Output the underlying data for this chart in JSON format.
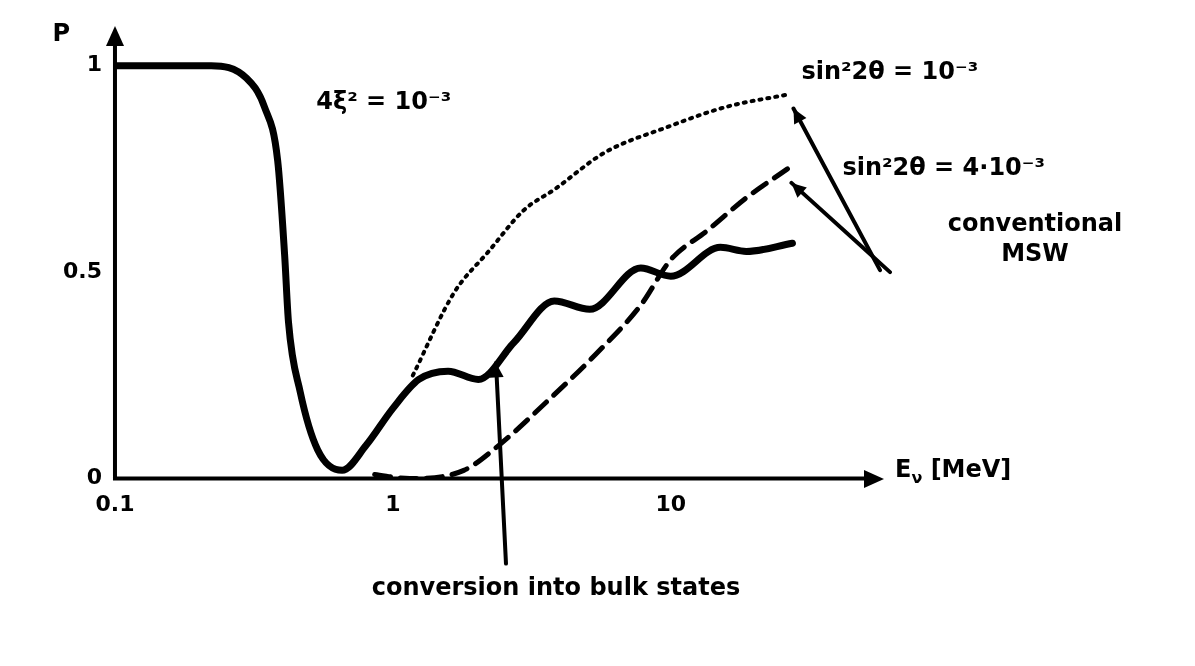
{
  "chart_data": {
    "type": "line",
    "xlabel": "E$_{ν}$ [MeV]",
    "ylabel": "P",
    "log": "x",
    "grid": false,
    "legend": false,
    "marker": "none",
    "xlim": [
      0.1,
      50
    ],
    "xticks": [
      0.1,
      1,
      10
    ],
    "ylim": [
      0,
      1.05
    ],
    "yticks": [
      0,
      0.5,
      1
    ],
    "series": [
      {
        "name": "4ξ² = 10⁻³",
        "color": "#000000",
        "line_style": "solid",
        "x": [
          0.1,
          0.222,
          0.297,
          0.345,
          0.385,
          0.408,
          0.421,
          0.464,
          0.536,
          0.657,
          0.8,
          1.0,
          1.24,
          1.58,
          2.03,
          2.73,
          3.81,
          5.11,
          7.8,
          10,
          15.1,
          18.7,
          27.4
        ],
        "values": [
          1,
          1,
          0.97,
          0.9,
          0.77,
          0.54,
          0.38,
          0.21,
          0.07,
          0.02,
          0.08,
          0.17,
          0.24,
          0.26,
          0.24,
          0.33,
          0.43,
          0.41,
          0.51,
          0.49,
          0.56,
          0.55,
          0.57
        ]
      },
      {
        "name": "sin²2θ = 10⁻³",
        "color": "#000000",
        "line_style": "dotted",
        "x": [
          1.18,
          1.66,
          2.21,
          2.96,
          3.81,
          5.8,
          9.6,
          15.8,
          26.3
        ],
        "values": [
          0.25,
          0.45,
          0.55,
          0.65,
          0.7,
          0.79,
          0.85,
          0.9,
          0.93
        ]
      },
      {
        "name": "sin²2θ = 4·10⁻³",
        "color": "#000000",
        "line_style": "dashed",
        "x": [
          0.86,
          1.15,
          1.8,
          2.4,
          3.5,
          5.35,
          7.8,
          10,
          13.5,
          18.7,
          26.3
        ],
        "values": [
          0.01,
          0,
          0.02,
          0.08,
          0.18,
          0.3,
          0.42,
          0.53,
          0.6,
          0.68,
          0.75
        ]
      }
    ],
    "annotations": [
      "conventional MSW",
      {
        "text": "conversion into bulk states",
        "x": 2.35,
        "y": 0.28
      }
    ]
  }
}
